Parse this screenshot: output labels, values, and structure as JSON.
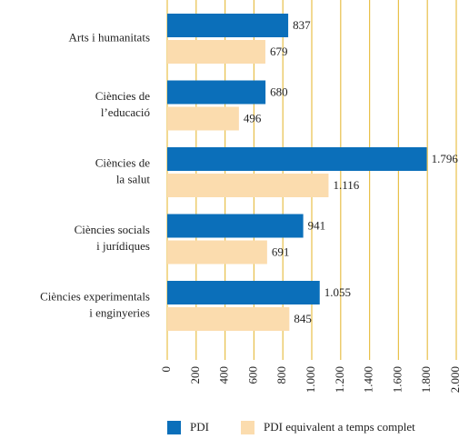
{
  "chart_data": {
    "type": "barh",
    "categories": [
      [
        "Arts i humanitats"
      ],
      [
        "Ciències de",
        "l’educació"
      ],
      [
        "Ciències de",
        "la salut"
      ],
      [
        "Ciències socials",
        "i jurídiques"
      ],
      [
        "Ciències experimentals",
        "i enginyeries"
      ]
    ],
    "series": [
      {
        "name": "PDI",
        "color": "#0b6fba",
        "values": [
          837,
          680,
          1796,
          941,
          1055
        ],
        "value_labels": [
          "837",
          "680",
          "1.796",
          "941",
          "1.055"
        ]
      },
      {
        "name": "PDI equivalent a temps complet",
        "color": "#fbdcae",
        "values": [
          679,
          496,
          1116,
          691,
          845
        ],
        "value_labels": [
          "679",
          "496",
          "1.116",
          "691",
          "845"
        ]
      }
    ],
    "xlim": [
      0,
      2000
    ],
    "xticks": [
      0,
      200,
      400,
      600,
      800,
      {
        "value": 1000,
        "label": "1.000"
      },
      {
        "value": 1200,
        "label": "1.200"
      },
      {
        "value": 1400,
        "label": "1.400"
      },
      {
        "value": 1600,
        "label": "1.600"
      },
      {
        "value": 1800,
        "label": "1.800"
      },
      {
        "value": 2000,
        "label": "2.000"
      }
    ],
    "grid": true,
    "legend": "bottom"
  }
}
